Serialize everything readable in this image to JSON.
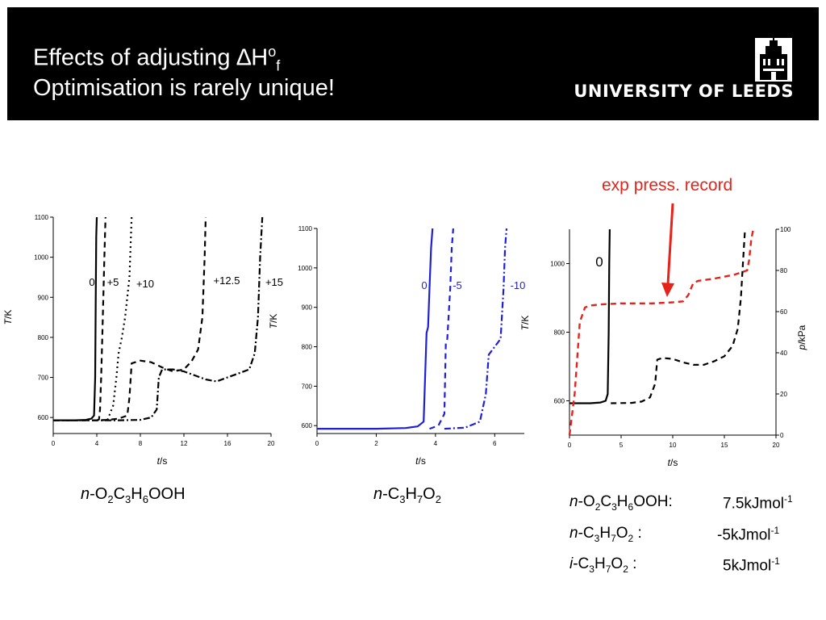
{
  "header": {
    "title_line1": "Effects of adjusting ∆H",
    "title_sup": "o",
    "title_sub": "f",
    "title_line2": "Optimisation is rarely unique!",
    "logo_text": "UNIVERSITY OF LEEDS"
  },
  "colors": {
    "black": "#000000",
    "blue": "#1f1fd6",
    "red": "#e5231b",
    "header_bg": "#000000"
  },
  "exp_label": "exp press. record",
  "captions": {
    "left": {
      "prefix": "n",
      "parts": [
        "-O",
        "2",
        "C",
        "3",
        "H",
        "6",
        "OOH"
      ]
    },
    "middle": {
      "prefix": "n",
      "parts": [
        "-C",
        "3",
        "H",
        "7",
        "O",
        "2"
      ]
    }
  },
  "notes": [
    {
      "prefix": "n",
      "species": "-O2C3H6OOH:",
      "value": "7.5kJmol",
      "exp": "-1"
    },
    {
      "prefix": "n",
      "species": "-C3H7O2 :",
      "value": "-5kJmol",
      "exp": "-1"
    },
    {
      "prefix": "i",
      "species": "-C3H7O2 :",
      "value": "5kJmol",
      "exp": "-1"
    }
  ],
  "chart_data": [
    {
      "type": "line",
      "xlabel": "t/s",
      "ylabel": "T/K",
      "xlim": [
        0,
        20
      ],
      "ylim": [
        560,
        1100
      ],
      "xticks": [
        0,
        4,
        8,
        12,
        16,
        20
      ],
      "yticks": [
        600,
        700,
        800,
        900,
        1000,
        1100
      ],
      "series": [
        {
          "name": "0",
          "style": "solid",
          "color": "#000000",
          "x": [
            0,
            2,
            3,
            3.5,
            3.75,
            3.85,
            3.9,
            3.95,
            4.0
          ],
          "y": [
            593,
            593,
            594,
            597,
            605,
            700,
            900,
            1050,
            1100
          ]
        },
        {
          "name": "+5",
          "style": "dash",
          "color": "#000000",
          "x": [
            4,
            4.2,
            4.3,
            4.4,
            4.5,
            4.6,
            4.7,
            4.8
          ],
          "y": [
            593,
            595,
            620,
            700,
            800,
            900,
            1000,
            1100
          ]
        },
        {
          "name": "+10",
          "style": "dot",
          "color": "#000000",
          "x": [
            4.5,
            5,
            5.5,
            5.8,
            6.0,
            6.3,
            6.6,
            7.0,
            7.2
          ],
          "y": [
            593,
            595,
            630,
            700,
            760,
            800,
            850,
            950,
            1100
          ]
        },
        {
          "name": "+12.5",
          "style": "dash",
          "color": "#000000",
          "x": [
            0,
            4,
            5,
            6,
            6.8,
            7.0,
            7.2,
            8,
            9,
            10,
            11,
            12,
            12.7,
            13.3,
            13.7,
            13.9,
            14.0
          ],
          "y": [
            593,
            593,
            594,
            597,
            605,
            650,
            735,
            742,
            738,
            725,
            715,
            720,
            740,
            770,
            850,
            1000,
            1100
          ]
        },
        {
          "name": "+15",
          "style": "dashdot",
          "color": "#000000",
          "x": [
            0,
            6,
            8,
            9,
            9.5,
            9.7,
            10,
            11,
            12,
            13,
            14,
            15,
            16,
            17,
            18,
            18.5,
            18.8,
            19.0,
            19.2
          ],
          "y": [
            593,
            593,
            594,
            600,
            620,
            700,
            720,
            720,
            715,
            705,
            695,
            690,
            700,
            710,
            720,
            760,
            850,
            1000,
            1100
          ]
        }
      ],
      "annotations": [
        "0",
        "+5",
        "+10",
        "+12.5",
        "+15"
      ]
    },
    {
      "type": "line",
      "xlabel": "t/s",
      "ylabel": "T/K",
      "xlim": [
        0,
        7
      ],
      "ylim": [
        580,
        1100
      ],
      "xticks": [
        0,
        2,
        4,
        6
      ],
      "yticks": [
        600,
        700,
        800,
        900,
        1000,
        1100
      ],
      "series": [
        {
          "name": "0",
          "style": "solid",
          "color": "#1f1fd6",
          "x": [
            0,
            2,
            3,
            3.4,
            3.6,
            3.7,
            3.75,
            3.8,
            3.85,
            3.9
          ],
          "y": [
            592,
            592,
            594,
            598,
            610,
            835,
            850,
            950,
            1050,
            1100
          ]
        },
        {
          "name": "-5",
          "style": "dash",
          "color": "#1f1fd6",
          "x": [
            3.8,
            4.1,
            4.3,
            4.35,
            4.4,
            4.5,
            4.55,
            4.6
          ],
          "y": [
            592,
            600,
            630,
            810,
            820,
            950,
            1050,
            1100
          ]
        },
        {
          "name": "-10",
          "style": "dashdot",
          "color": "#1f1fd6",
          "x": [
            4.3,
            5,
            5.5,
            5.7,
            5.8,
            6.0,
            6.2,
            6.3,
            6.35,
            6.4
          ],
          "y": [
            592,
            595,
            610,
            680,
            780,
            800,
            820,
            950,
            1050,
            1100
          ]
        }
      ],
      "annotations": [
        "0",
        "-5",
        "-10"
      ]
    },
    {
      "type": "line",
      "xlabel": "t/s",
      "ylabel": "T/K",
      "y2label": "p/kPa",
      "xlim": [
        0,
        20
      ],
      "ylim": [
        500,
        1100
      ],
      "y2lim": [
        0,
        100
      ],
      "xticks": [
        0,
        5,
        10,
        15,
        20
      ],
      "yticks": [
        600,
        800,
        1000
      ],
      "y2ticks": [
        0,
        20,
        40,
        60,
        80,
        100
      ],
      "series": [
        {
          "name": "0",
          "style": "solid",
          "color": "#000000",
          "axis": "left",
          "x": [
            0,
            2,
            3,
            3.5,
            3.7,
            3.8,
            3.85,
            3.9
          ],
          "y": [
            593,
            593,
            595,
            600,
            620,
            800,
            1000,
            1100
          ]
        },
        {
          "name": "",
          "style": "dash",
          "color": "#000000",
          "axis": "left",
          "x": [
            4,
            6,
            7,
            7.8,
            8.3,
            8.5,
            9,
            10,
            11,
            12,
            13,
            14,
            15,
            15.8,
            16.3,
            16.6,
            16.8,
            17.0
          ],
          "y": [
            593,
            594,
            598,
            610,
            650,
            720,
            725,
            722,
            712,
            705,
            705,
            715,
            730,
            760,
            810,
            900,
            1000,
            1100
          ]
        },
        {
          "name": "exp press. record",
          "style": "dash",
          "color": "#e5231b",
          "axis": "right",
          "x": [
            0,
            0.5,
            1,
            1.5,
            2,
            3,
            5,
            8,
            10,
            11,
            11.5,
            12,
            12.5,
            14,
            16,
            17.2,
            17.4,
            17.6,
            17.8
          ],
          "y": [
            0,
            20,
            55,
            62,
            63,
            63.5,
            64,
            64,
            64.5,
            65,
            68,
            74,
            75,
            76,
            78,
            80,
            85,
            95,
            100
          ]
        }
      ],
      "annotations": [
        "0"
      ]
    }
  ]
}
